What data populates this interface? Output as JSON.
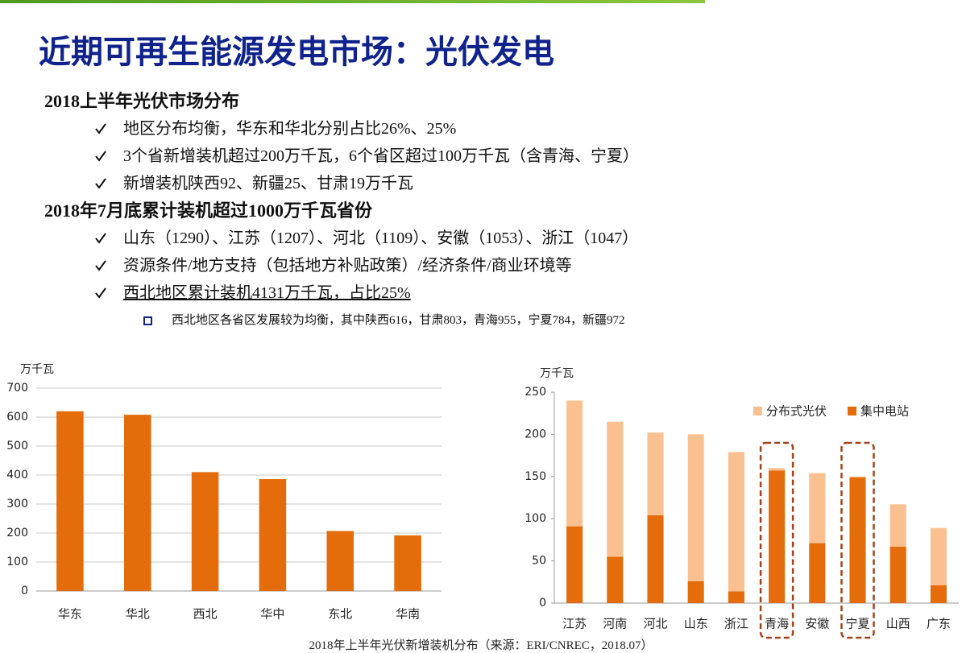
{
  "title": "近期可再生能源发电市场：光伏发电",
  "sections": [
    {
      "heading": "2018上半年光伏市场分布",
      "bullets": [
        {
          "text": "地区分布均衡，华东和华北分别占比26%、25%"
        },
        {
          "text": "3个省新增装机超过200万千瓦，6个省区超过100万千瓦（含青海、宁夏）"
        },
        {
          "text": "新增装机陕西92、新疆25、甘肃19万千瓦"
        }
      ]
    },
    {
      "heading": "2018年7月底累计装机超过1000万千瓦省份",
      "bullets": [
        {
          "text": "山东（1290）、江苏（1207）、河北（1109）、安徽（1053）、浙江（1047）"
        },
        {
          "text": "资源条件/地方支持（包括地方补贴政策）/经济条件/商业环境等"
        },
        {
          "text": "西北地区累计装机4131万千瓦，占比25%",
          "underline": true,
          "sub": [
            "西北地区各省区发展较为均衡，其中陕西616，甘肃803，青海955，宁夏784，新疆972"
          ]
        }
      ]
    }
  ],
  "caption": "2018年上半年光伏新增装机分布（来源：ERI/CNREC，2018.07）",
  "chart_data": [
    {
      "type": "bar",
      "ylabel": "万千瓦",
      "categories": [
        "华东",
        "华北",
        "西北",
        "华中",
        "东北",
        "华南"
      ],
      "values": [
        620,
        608,
        410,
        386,
        207,
        192
      ],
      "color": "#e46c0a",
      "ylim": [
        0,
        700
      ],
      "yticks": [
        0,
        100,
        200,
        300,
        400,
        500,
        600,
        700
      ],
      "grid": true
    },
    {
      "type": "stacked-bar",
      "ylabel": "万千瓦",
      "categories": [
        "江苏",
        "河南",
        "河北",
        "山东",
        "浙江",
        "青海",
        "安徽",
        "宁夏",
        "山西",
        "广东"
      ],
      "series": [
        {
          "name": "集中电站",
          "color": "#e46c0a",
          "values": [
            91,
            55,
            104,
            26,
            14,
            157,
            71,
            149,
            67,
            21
          ]
        },
        {
          "name": "分布式光伏",
          "color": "#fac090",
          "values": [
            149,
            160,
            98,
            174,
            165,
            3,
            83,
            1,
            50,
            68
          ]
        }
      ],
      "ylim": [
        0,
        250
      ],
      "yticks": [
        0,
        50,
        100,
        150,
        200,
        250
      ],
      "grid": false,
      "legend": "upper right",
      "highlight": [
        5,
        7
      ]
    }
  ]
}
